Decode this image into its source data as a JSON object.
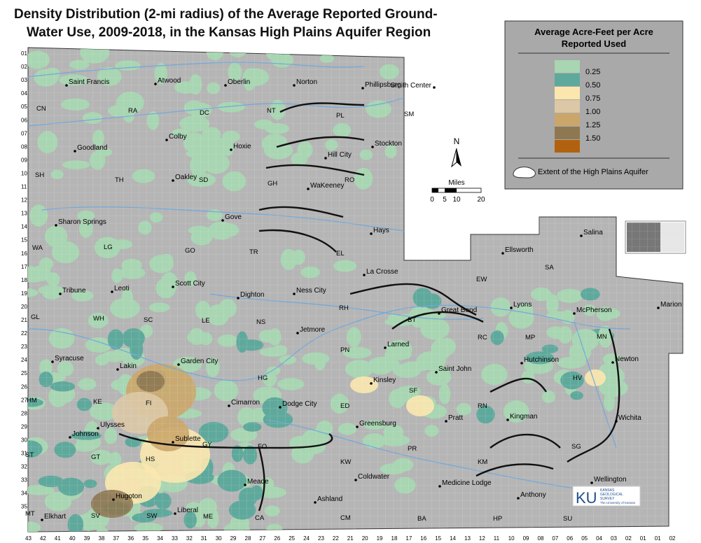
{
  "title_lines": [
    "Density Distribution (2-mi radius) of the Average Reported Ground-",
    "Water Use, 2009-2018, in the Kansas High Plains Aquifer Region"
  ],
  "legend": {
    "title_lines": [
      "Average Acre-Feet per Acre",
      "Reported Used"
    ],
    "colors": [
      "#a8d5b2",
      "#5fa99c",
      "#fbe7ae",
      "#dcc8a6",
      "#cba66a",
      "#8d7852",
      "#b2620f"
    ],
    "labels": [
      "0.25",
      "0.50",
      "0.75",
      "1.00",
      "1.25",
      "1.50"
    ],
    "aquifer_label": "Extent of the High Plains Aquifer"
  },
  "north": "N",
  "scale": {
    "title": "Miles",
    "labels": [
      "0",
      "5",
      "10",
      "20"
    ]
  },
  "cities": [
    "Saint Francis",
    "Atwood",
    "Oberlin",
    "Norton",
    "Phillipsburg",
    "Smith Center",
    "Goodland",
    "Colby",
    "Hoxie",
    "Hill City",
    "Stockton",
    "Oakley",
    "WaKeeney",
    "Sharon Springs",
    "Gove",
    "Hays",
    "Ellsworth",
    "Salina",
    "Leoti",
    "Scott City",
    "Ness City",
    "La Crosse",
    "Tribune",
    "Dighton",
    "Great Bend",
    "Lyons",
    "McPherson",
    "Marion",
    "Jetmore",
    "Larned",
    "Syracuse",
    "Lakin",
    "Garden City",
    "Hutchinson",
    "Newton",
    "Saint John",
    "Kinsley",
    "Cimarron",
    "Dodge City",
    "Pratt",
    "Greensburg",
    "Kingman",
    "Wichita",
    "Ulysses",
    "Johnson",
    "Sublette",
    "Meade",
    "Coldwater",
    "Medicine Lodge",
    "Wellington",
    "Hugoton",
    "Ashland",
    "Liberal",
    "Anthony",
    "Elkhart"
  ],
  "counties": [
    "CN",
    "RA",
    "DC",
    "NT",
    "PL",
    "SM",
    "SH",
    "TH",
    "SD",
    "GH",
    "RO",
    "WA",
    "LG",
    "GO",
    "TR",
    "EL",
    "SA",
    "EW",
    "GL",
    "WH",
    "SC",
    "LE",
    "NS",
    "RH",
    "BT",
    "RC",
    "MP",
    "MN",
    "HG",
    "PN",
    "HM",
    "KE",
    "FI",
    "GY",
    "FO",
    "ED",
    "SF",
    "RN",
    "HV",
    "ST",
    "GT",
    "HS",
    "KW",
    "PR",
    "KM",
    "SG",
    "MT",
    "SV",
    "SW",
    "ME",
    "CA",
    "CM",
    "BA",
    "HP",
    "SU"
  ],
  "townships": [
    "01",
    "02",
    "03",
    "04",
    "05",
    "06",
    "07",
    "08",
    "09",
    "10",
    "11",
    "12",
    "13",
    "14",
    "15",
    "16",
    "17",
    "18",
    "19",
    "20",
    "21",
    "22",
    "23",
    "24",
    "25",
    "26",
    "27",
    "28",
    "29",
    "30",
    "31",
    "32",
    "33",
    "34",
    "35"
  ],
  "ranges": [
    "43",
    "42",
    "41",
    "40",
    "39",
    "38",
    "37",
    "36",
    "35",
    "34",
    "33",
    "32",
    "31",
    "30",
    "29",
    "28",
    "27",
    "26",
    "25",
    "24",
    "23",
    "22",
    "21",
    "20",
    "19",
    "18",
    "17",
    "16",
    "15",
    "14",
    "13",
    "12",
    "11",
    "10",
    "09",
    "08",
    "07",
    "06",
    "05",
    "04",
    "03",
    "02",
    "01",
    "01",
    "02"
  ],
  "logo": {
    "mark": "KU",
    "name_lines": [
      "KANSAS",
      "GEOLOGICAL",
      "SURVEY"
    ],
    "university": "The University of Kansas"
  }
}
